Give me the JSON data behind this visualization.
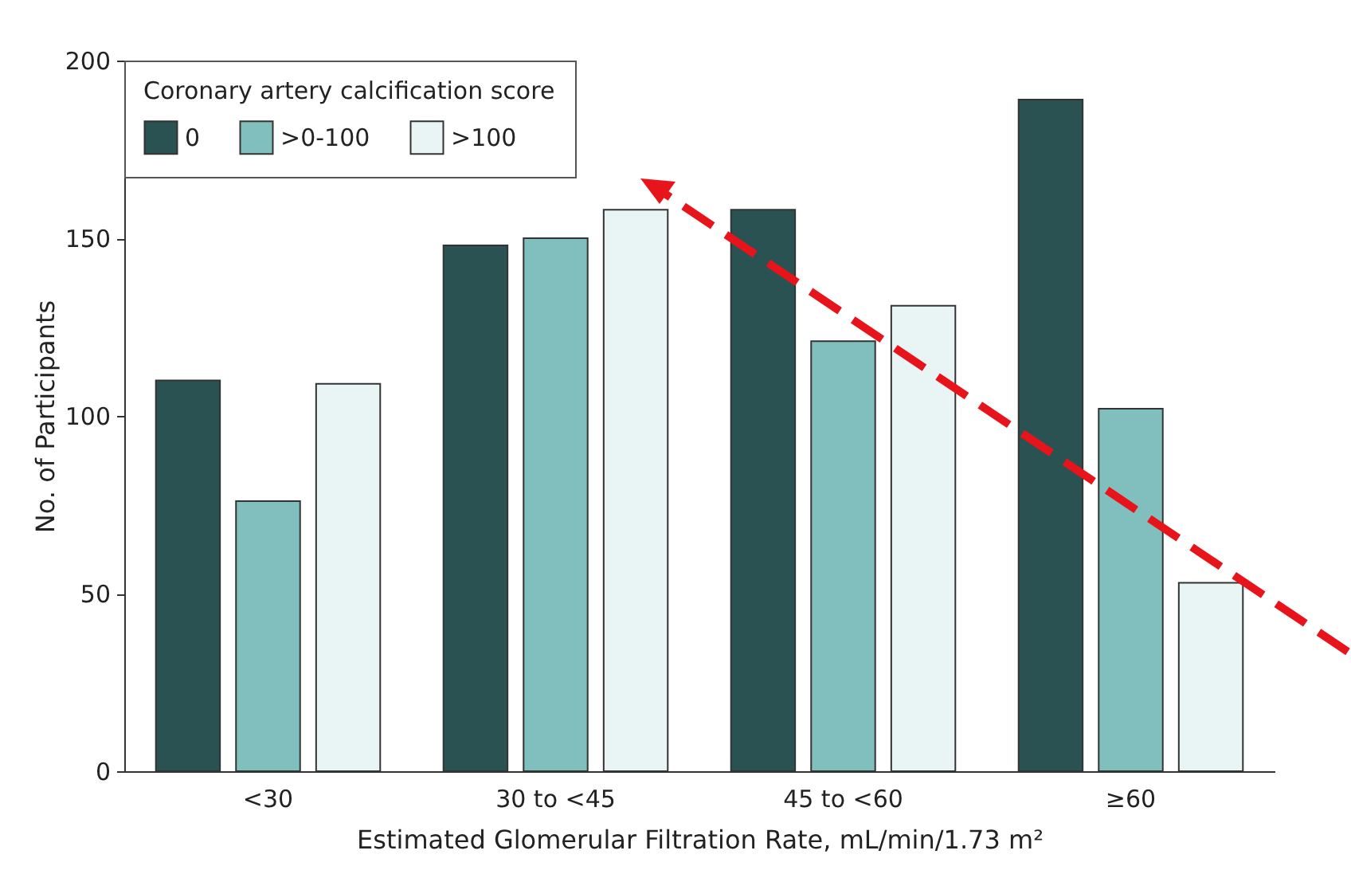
{
  "chart_data": {
    "type": "bar",
    "legend_title": "Coronary artery calcification score",
    "xlabel": "Estimated Glomerular Filtration Rate, mL/min/1.73 m²",
    "ylabel": "No. of Participants",
    "categories": [
      "<30",
      "30 to <45",
      "45 to <60",
      "≥60"
    ],
    "series": [
      {
        "name": "0",
        "color": "#2b5253",
        "values": [
          110,
          148,
          158,
          189
        ]
      },
      {
        "name": ">0-100",
        "color": "#80bfbd",
        "values": [
          76,
          150,
          121,
          102
        ]
      },
      {
        "name": ">100",
        "color": "#e9f4f4",
        "values": [
          109,
          158,
          131,
          53
        ]
      }
    ],
    "ylim": [
      0,
      200
    ],
    "yticks": [
      0,
      50,
      100,
      150,
      200
    ],
    "grid": false,
    "legend": "top left"
  }
}
